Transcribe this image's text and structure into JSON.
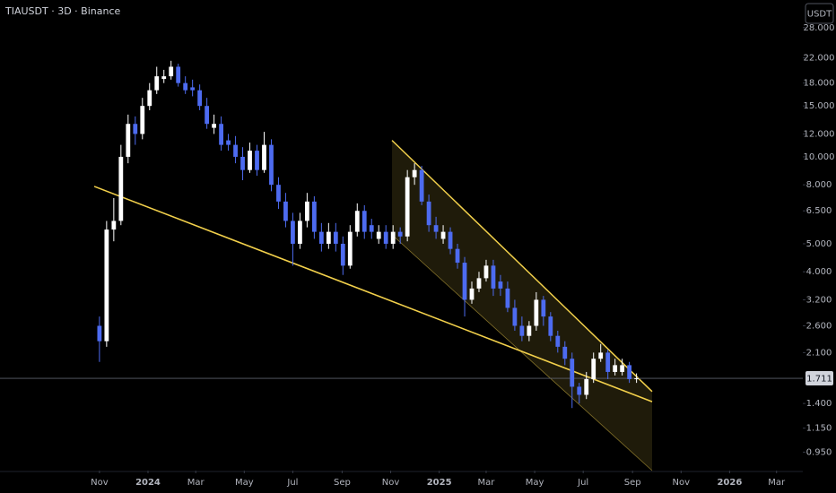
{
  "chart_data": {
    "type": "candlestick",
    "title": "TIAUSDT · 3D · Binance",
    "currency_button": "USDT",
    "log_scale": true,
    "grid": false,
    "up_color": "#ffffff",
    "down_color": "#4d6bf0",
    "xlim": [
      -125,
      884
    ],
    "ylim": [
      0.82,
      34.9
    ],
    "xticks": [
      {
        "value": 0,
        "label": "Nov"
      },
      {
        "value": 61,
        "label": "2024"
      },
      {
        "value": 121,
        "label": "Mar"
      },
      {
        "value": 182,
        "label": "May"
      },
      {
        "value": 243,
        "label": "Jul"
      },
      {
        "value": 305,
        "label": "Sep"
      },
      {
        "value": 366,
        "label": "Nov"
      },
      {
        "value": 427,
        "label": "2025"
      },
      {
        "value": 486,
        "label": "Mar"
      },
      {
        "value": 547,
        "label": "May"
      },
      {
        "value": 608,
        "label": "Jul"
      },
      {
        "value": 670,
        "label": "Sep"
      },
      {
        "value": 731,
        "label": "Nov"
      },
      {
        "value": 792,
        "label": "2026"
      },
      {
        "value": 851,
        "label": "Mar"
      }
    ],
    "yticks": [
      {
        "value": 28,
        "label": "28.000"
      },
      {
        "value": 22,
        "label": "22.000"
      },
      {
        "value": 18,
        "label": "18.000"
      },
      {
        "value": 15,
        "label": "15.000"
      },
      {
        "value": 12,
        "label": "12.000"
      },
      {
        "value": 10,
        "label": "10.000"
      },
      {
        "value": 8,
        "label": "8.000"
      },
      {
        "value": 6.5,
        "label": "6.500"
      },
      {
        "value": 5,
        "label": "5.000"
      },
      {
        "value": 4,
        "label": "4.000"
      },
      {
        "value": 3.2,
        "label": "3.200"
      },
      {
        "value": 2.6,
        "label": "2.600"
      },
      {
        "value": 2.1,
        "label": "2.100"
      },
      {
        "value": 1.4,
        "label": "1.400"
      },
      {
        "value": 1.15,
        "label": "1.150"
      },
      {
        "value": 0.95,
        "label": "0.950"
      }
    ],
    "last_price": 1.711,
    "x": [
      0,
      9,
      18,
      27,
      36,
      45,
      54,
      63,
      72,
      81,
      90,
      99,
      108,
      117,
      126,
      135,
      144,
      153,
      162,
      171,
      180,
      189,
      198,
      207,
      216,
      225,
      234,
      243,
      252,
      261,
      270,
      279,
      288,
      297,
      306,
      315,
      324,
      333,
      342,
      351,
      360,
      369,
      378,
      387,
      396,
      405,
      414,
      423,
      432,
      441,
      450,
      459,
      468,
      477,
      486,
      495,
      504,
      513,
      522,
      531,
      540,
      549,
      558,
      567,
      576,
      585,
      594,
      603,
      612,
      621,
      630,
      639,
      648,
      657,
      666,
      675
    ],
    "open": [
      2.6,
      2.3,
      5.6,
      6.0,
      10,
      13,
      12,
      15,
      17,
      18.6,
      19,
      20.5,
      18,
      17.4,
      17,
      15,
      12.6,
      13,
      11.4,
      11,
      10,
      9,
      10.5,
      9,
      11,
      8,
      7,
      6,
      5,
      6,
      7,
      5.5,
      5,
      5.5,
      5,
      4.2,
      5.5,
      6.5,
      5.8,
      5.2,
      5.5,
      5,
      5.5,
      5.3,
      8.5,
      9,
      7,
      5.8,
      5.2,
      5.5,
      4.8,
      4.3,
      3.2,
      3.5,
      3.8,
      4.2,
      3.7,
      3.5,
      3,
      2.6,
      2.4,
      2.6,
      3.2,
      2.8,
      2.4,
      2.2,
      2.0,
      1.6,
      1.5,
      1.7,
      2.0,
      2.1,
      1.8,
      1.8,
      1.9,
      1.7
    ],
    "high": [
      2.8,
      6.0,
      7.2,
      11,
      14,
      13.8,
      16,
      18,
      20.5,
      20,
      21.5,
      21,
      19,
      18.5,
      17.8,
      16,
      14,
      13.8,
      12,
      11.8,
      10.8,
      11.2,
      11,
      12.2,
      11.5,
      8.5,
      7.5,
      6.4,
      6.4,
      7.5,
      7.3,
      5.9,
      5.9,
      5.9,
      5.3,
      5.8,
      6.9,
      6.8,
      6.1,
      5.8,
      5.8,
      5.8,
      5.7,
      9.0,
      9.5,
      9.3,
      7.4,
      6.2,
      5.8,
      5.7,
      5.0,
      4.5,
      3.7,
      4.0,
      4.4,
      4.4,
      3.9,
      3.7,
      3.2,
      2.8,
      2.7,
      3.4,
      3.3,
      2.9,
      2.5,
      2.3,
      2.1,
      1.65,
      1.8,
      2.1,
      2.25,
      2.15,
      2.0,
      2.0,
      1.95,
      1.78
    ],
    "low": [
      1.95,
      2.2,
      5.1,
      5.8,
      9.5,
      11,
      11.5,
      14.5,
      16.5,
      18,
      18.5,
      17.5,
      16.5,
      16.2,
      14.5,
      12.5,
      12,
      10.5,
      10.5,
      9.5,
      8.3,
      8.8,
      8.6,
      8.8,
      7.6,
      6.6,
      5.7,
      4.2,
      4.8,
      5.7,
      5.2,
      4.7,
      4.8,
      4.7,
      3.9,
      4.1,
      5.3,
      5.2,
      5.2,
      5.0,
      4.8,
      4.8,
      5.0,
      5.1,
      8.0,
      6.8,
      5.5,
      5.2,
      5.0,
      4.6,
      4.1,
      2.8,
      3.1,
      3.4,
      3.7,
      3.3,
      3.3,
      2.9,
      2.5,
      2.3,
      2.3,
      2.5,
      2.6,
      2.3,
      2.1,
      1.9,
      1.35,
      1.4,
      1.45,
      1.65,
      1.95,
      1.7,
      1.75,
      1.75,
      1.65,
      1.65
    ],
    "close": [
      2.3,
      5.6,
      6.0,
      10,
      13,
      12,
      15,
      17,
      19,
      19,
      20.5,
      18,
      17,
      17,
      15,
      13,
      13,
      11,
      11,
      10,
      9,
      10.5,
      9,
      11,
      8,
      7,
      6,
      5,
      6,
      7,
      5.5,
      5,
      5.5,
      5,
      4.2,
      5.5,
      6.5,
      5.5,
      5.5,
      5.5,
      5,
      5.5,
      5.3,
      8.5,
      9,
      7,
      5.8,
      5.5,
      5.5,
      4.8,
      4.3,
      3.2,
      3.5,
      3.8,
      4.2,
      3.5,
      3.5,
      3,
      2.6,
      2.4,
      2.6,
      3.2,
      2.8,
      2.4,
      2.2,
      2.0,
      1.6,
      1.5,
      1.7,
      2.0,
      2.1,
      1.8,
      1.9,
      1.9,
      1.7,
      1.711
    ],
    "trendline": {
      "color": "#f2d04b",
      "points": [
        [
          -6.6,
          7.9
        ],
        [
          694.6,
          1.42
        ]
      ]
    },
    "channel": {
      "color": "#f2d04b",
      "upper": [
        [
          367.7,
          11.4
        ],
        [
          694.6,
          1.54
        ]
      ],
      "lower": [
        [
          367.7,
          5.37
        ],
        [
          694.6,
          0.82
        ]
      ]
    }
  }
}
